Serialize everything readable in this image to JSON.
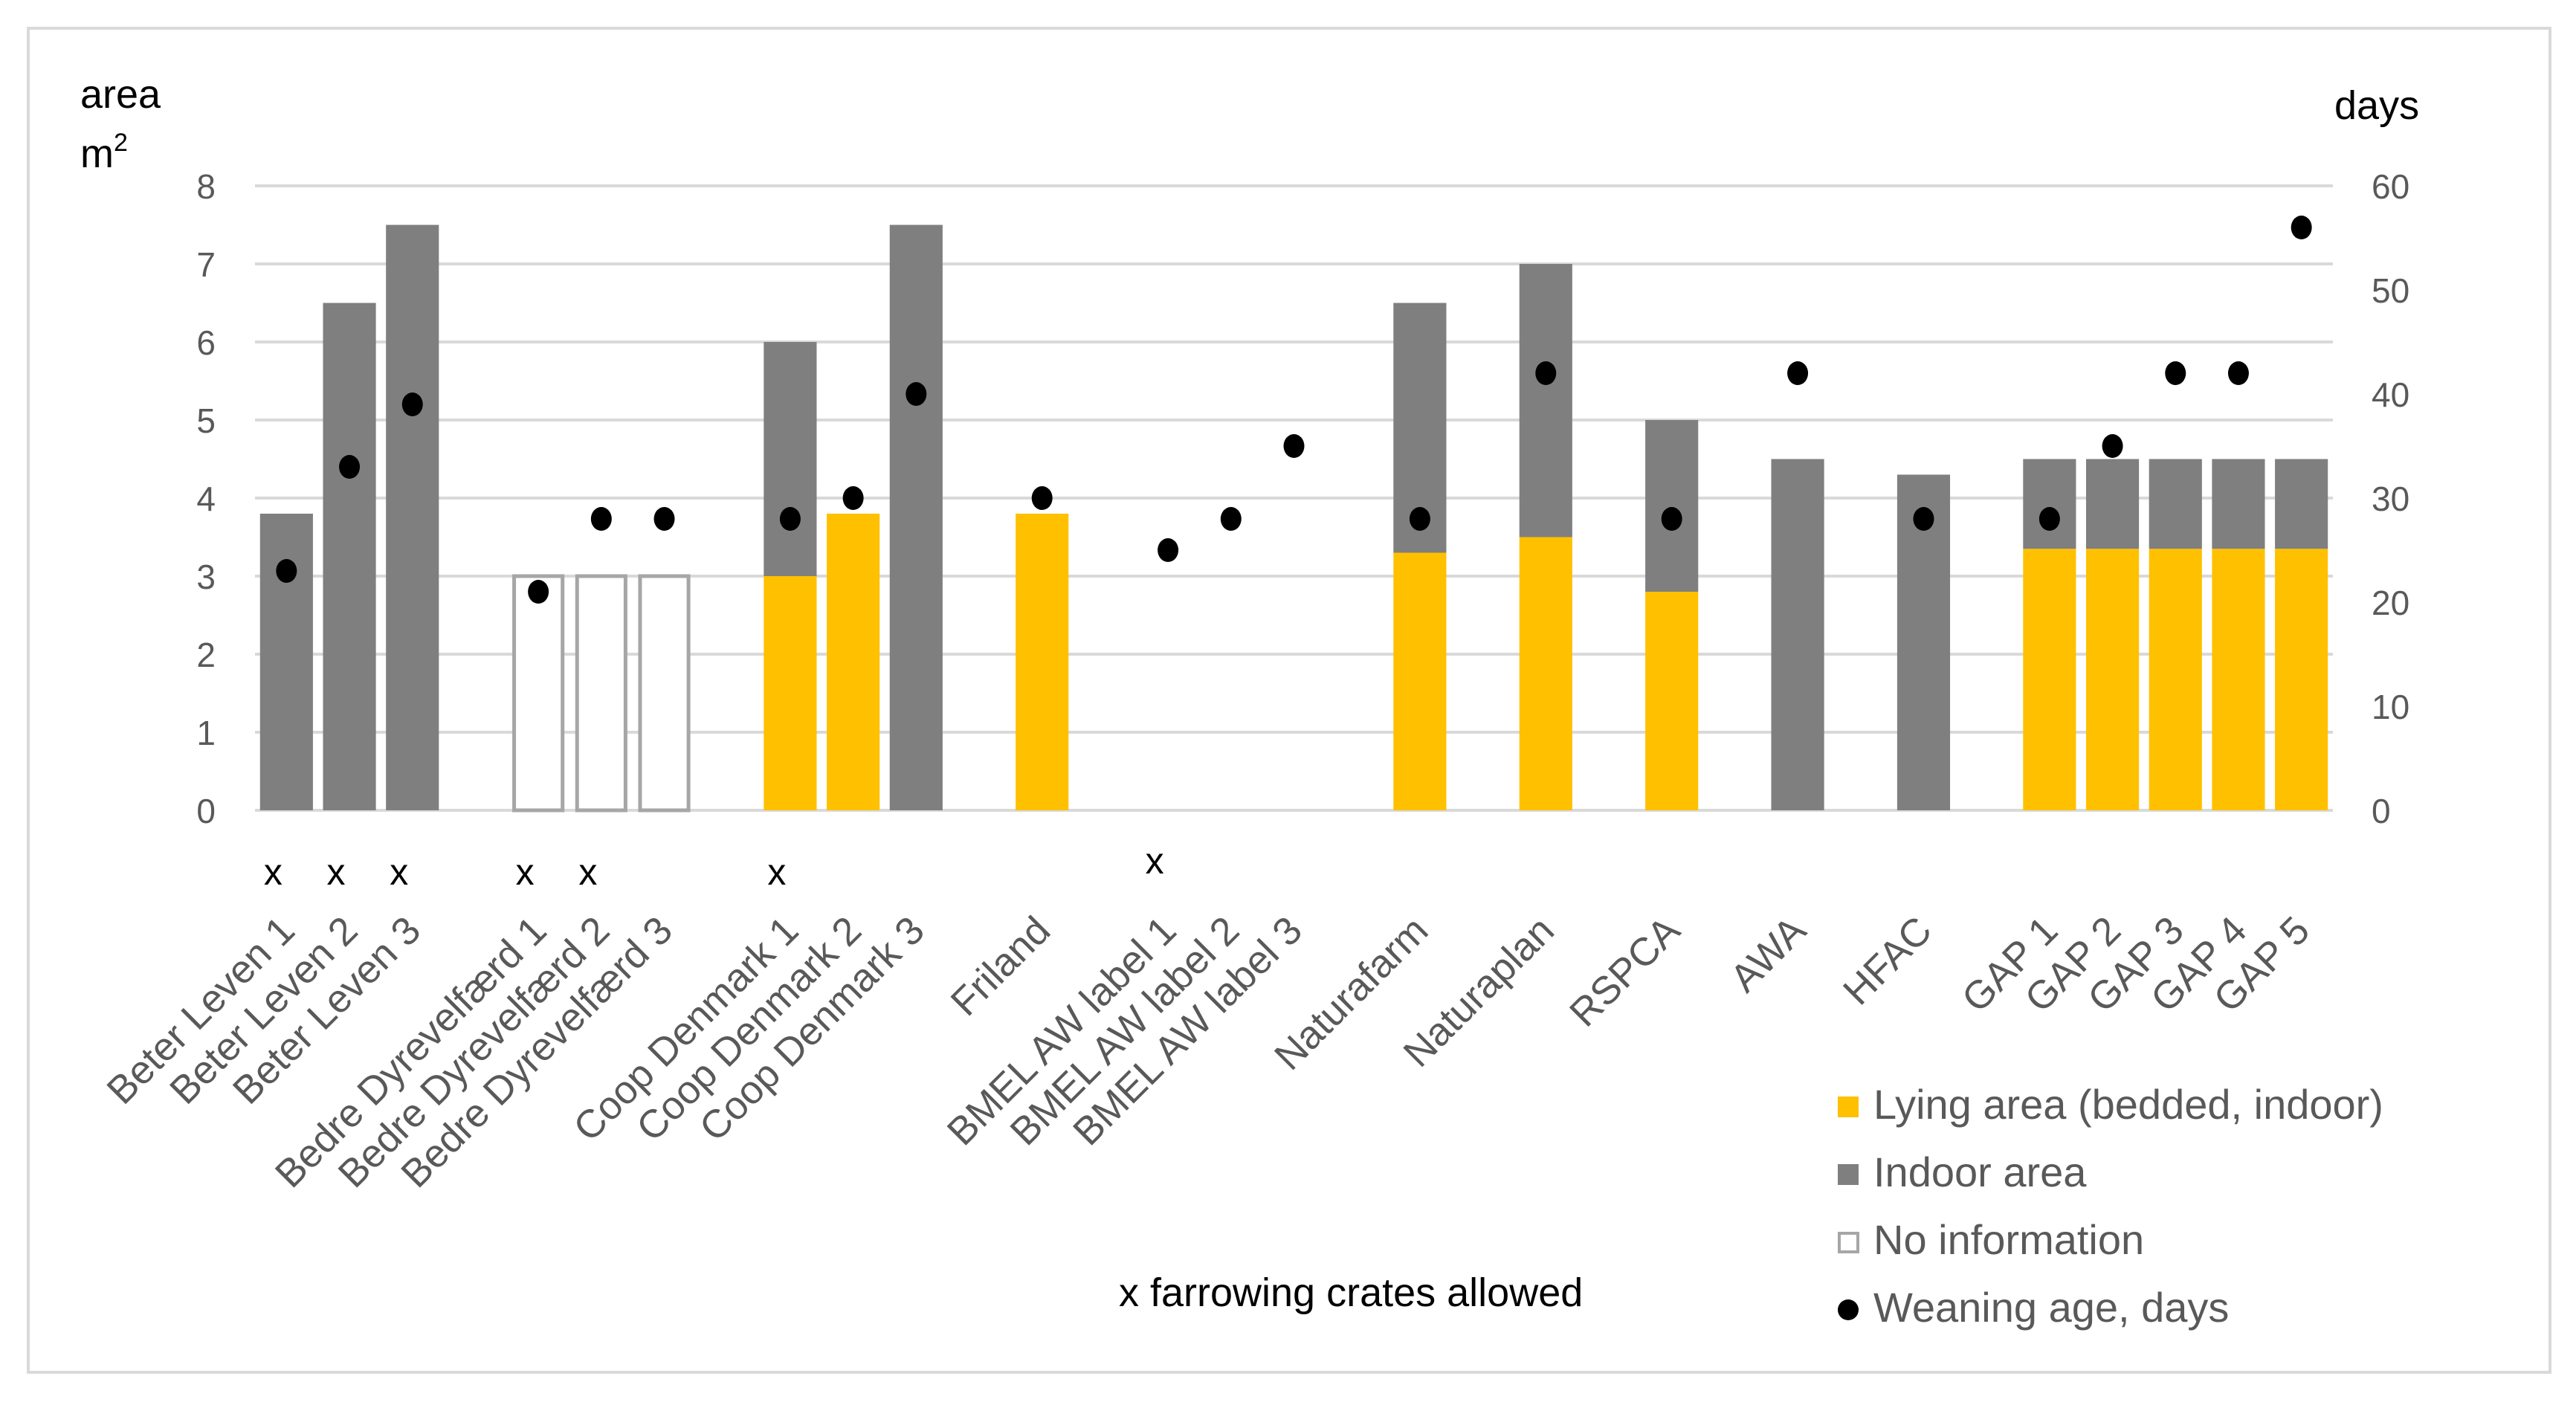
{
  "chart_data": {
    "type": "bar",
    "stacked": true,
    "ylabel_left": "area",
    "ylabel_left_unit": "m",
    "ylabel_left_sup": "2",
    "ylabel_right": "days",
    "ylim_left": [
      0,
      8
    ],
    "ylim_right": [
      0,
      60
    ],
    "yticks_left": [
      "0",
      "1",
      "2",
      "3",
      "4",
      "5",
      "6",
      "7",
      "8"
    ],
    "yticks_right": [
      "0",
      "10",
      "20",
      "30",
      "40",
      "50",
      "60"
    ],
    "grid": true,
    "categories": [
      "Beter Leven 1",
      "Beter Leven 2",
      "Beter Leven 3",
      "",
      "Bedre Dyrevelfærd 1",
      "Bedre Dyrevelfærd 2",
      "Bedre Dyrevelfærd 3",
      "",
      "Coop Denmark 1",
      "Coop Denmark 2",
      "Coop Denmark 3",
      "",
      "Friland",
      "",
      "BMEL AW label 1",
      "BMEL AW label 2",
      "BMEL AW label 3",
      "",
      "Naturafarm",
      "",
      "Naturaplan",
      "",
      "RSPCA",
      "",
      "AWA",
      "",
      "HFAC",
      "",
      "GAP 1",
      "GAP 2",
      "GAP 3",
      "GAP 4",
      "GAP 5"
    ],
    "series": [
      {
        "name": "Lying area (bedded, indoor)",
        "color": "#FFC000",
        "axis": "left",
        "kind": "bar",
        "values": [
          0,
          0,
          0,
          null,
          0,
          0,
          0,
          null,
          3.0,
          3.8,
          0,
          null,
          3.8,
          null,
          0,
          0,
          0,
          null,
          3.3,
          null,
          3.5,
          null,
          2.8,
          null,
          0,
          null,
          0,
          null,
          3.35,
          3.35,
          3.35,
          3.35,
          3.35
        ]
      },
      {
        "name": "Indoor area",
        "color": "#7F7F7F",
        "axis": "left",
        "kind": "bar",
        "values": [
          3.8,
          6.5,
          7.5,
          null,
          0,
          0,
          0,
          null,
          3.0,
          0,
          7.5,
          null,
          0,
          null,
          0,
          0,
          0,
          null,
          3.2,
          null,
          3.5,
          null,
          2.2,
          null,
          4.5,
          null,
          4.3,
          null,
          1.15,
          1.15,
          1.15,
          1.15,
          1.15
        ]
      },
      {
        "name": "No information",
        "color": "#FFFFFF",
        "axis": "left",
        "kind": "bar-outline",
        "values": [
          0,
          0,
          0,
          null,
          3,
          3,
          3,
          null,
          0,
          0,
          0,
          null,
          0,
          null,
          0,
          0,
          0,
          null,
          0,
          null,
          0,
          null,
          0,
          null,
          0,
          null,
          0,
          null,
          0,
          0,
          0,
          0,
          0
        ]
      },
      {
        "name": "Weaning age, days",
        "color": "#000000",
        "axis": "right",
        "kind": "dot",
        "values": [
          23,
          33,
          39,
          null,
          21,
          28,
          28,
          null,
          28,
          30,
          40,
          null,
          30,
          null,
          25,
          28,
          35,
          null,
          28,
          null,
          42,
          null,
          28,
          null,
          42,
          null,
          28,
          null,
          28,
          35,
          42,
          42,
          56
        ]
      }
    ],
    "crates_marker": "x",
    "crates_allowed": [
      true,
      true,
      true,
      false,
      true,
      true,
      false,
      false,
      true,
      false,
      false,
      false,
      false,
      false,
      true,
      false,
      false,
      false,
      false,
      false,
      false,
      false,
      false,
      false,
      false,
      false,
      false,
      false,
      false,
      false,
      false,
      false,
      false
    ],
    "annotation": "x farrowing crates allowed",
    "legend": [
      "Lying area (bedded, indoor)",
      "Indoor area",
      "No information",
      "Weaning age, days"
    ],
    "legend_position": "bottom-right"
  }
}
